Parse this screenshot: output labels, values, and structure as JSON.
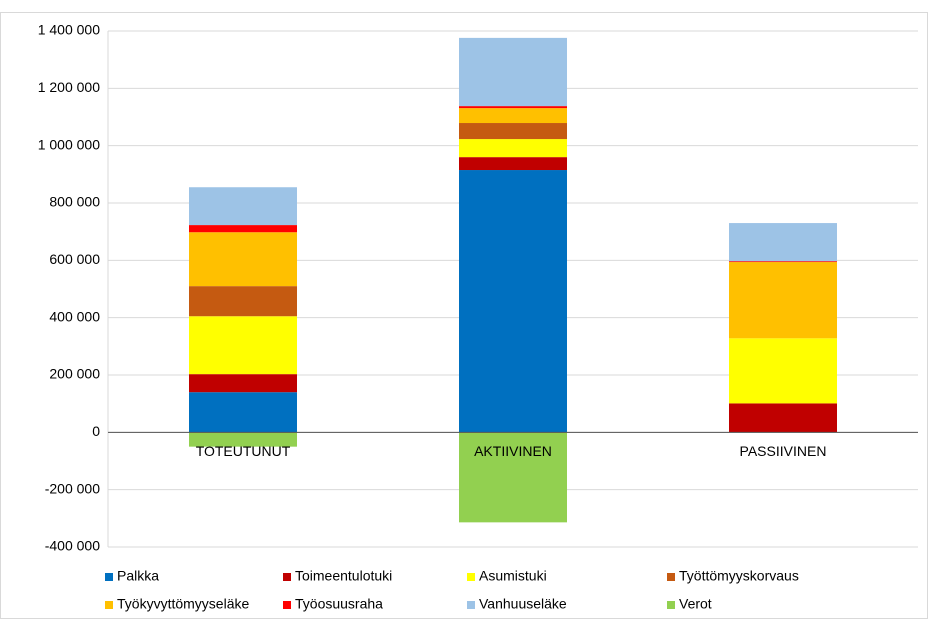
{
  "chart_data": {
    "type": "stacked-bar",
    "categories": [
      "TOTEUTUNUT",
      "AKTIIVINEN",
      "PASSIIVINEN"
    ],
    "series": [
      {
        "name": "Palkka",
        "color": "#0070c0",
        "values": [
          140000,
          915000,
          0
        ]
      },
      {
        "name": "Toimeentulotuki",
        "color": "#c00000",
        "values": [
          63000,
          45000,
          101000
        ]
      },
      {
        "name": "Asumistuki",
        "color": "#ffff00",
        "values": [
          202000,
          63000,
          227000
        ]
      },
      {
        "name": "Työttömyyskorvaus",
        "color": "#c55a11",
        "values": [
          105000,
          56000,
          0
        ]
      },
      {
        "name": "Työkyvyttömyyseläke",
        "color": "#ffc000",
        "values": [
          188000,
          52000,
          266000
        ]
      },
      {
        "name": "Työosuusraha",
        "color": "#ff0000",
        "values": [
          25000,
          7000,
          3000
        ]
      },
      {
        "name": "Vanhuuseläke",
        "color": "#9dc3e6",
        "values": [
          132000,
          238000,
          133000
        ]
      },
      {
        "name": "Verot",
        "color": "#92d050",
        "values": [
          -50000,
          -314000,
          0
        ]
      }
    ],
    "ylim": [
      -400000,
      1400000
    ],
    "yticks": [
      {
        "value": -400000,
        "label": "-400 000"
      },
      {
        "value": -200000,
        "label": "-200 000"
      },
      0,
      {
        "value": 200000,
        "label": "200 000"
      },
      {
        "value": 400000,
        "label": "400 000"
      },
      {
        "value": 600000,
        "label": "600 000"
      },
      {
        "value": 800000,
        "label": "800 000"
      },
      {
        "value": 1000000,
        "label": "1 000 000"
      },
      {
        "value": 1200000,
        "label": "1 200 000"
      },
      {
        "value": 1400000,
        "label": "1 400 000"
      }
    ],
    "grid": true,
    "legend": "bottom"
  }
}
